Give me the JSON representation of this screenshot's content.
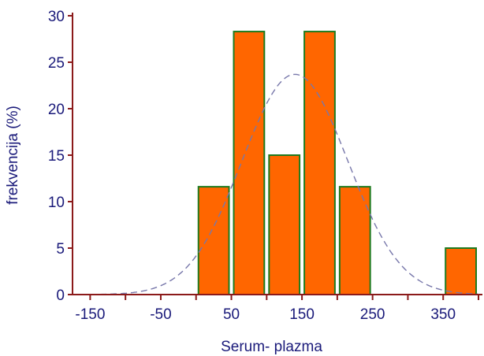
{
  "chart_data": {
    "type": "bar",
    "title": "",
    "xlabel": "Serum- plazma",
    "ylabel": "frekvencija (%)",
    "xlim": [
      -175,
      400
    ],
    "ylim": [
      0,
      30
    ],
    "x_ticks": [
      -150,
      -100,
      -50,
      0,
      50,
      100,
      150,
      200,
      250,
      300,
      350,
      400
    ],
    "x_tick_labels": [
      {
        "value": -150,
        "label": "-150"
      },
      {
        "value": -50,
        "label": "-50"
      },
      {
        "value": 50,
        "label": "50"
      },
      {
        "value": 150,
        "label": "150"
      },
      {
        "value": 250,
        "label": "250"
      },
      {
        "value": 350,
        "label": "350"
      }
    ],
    "y_ticks": [
      0,
      5,
      10,
      15,
      20,
      25,
      30
    ],
    "y_tick_labels": [
      "0",
      "5",
      "10",
      "15",
      "20",
      "25",
      "30"
    ],
    "bins": [
      {
        "from": 0,
        "to": 50,
        "value": 11.6
      },
      {
        "from": 50,
        "to": 100,
        "value": 28.3
      },
      {
        "from": 100,
        "to": 150,
        "value": 15.0
      },
      {
        "from": 150,
        "to": 200,
        "value": 28.3
      },
      {
        "from": 200,
        "to": 250,
        "value": 11.6
      },
      {
        "from": 350,
        "to": 400,
        "value": 5.0
      }
    ],
    "normal_curve": {
      "mean": 140,
      "sd": 75,
      "peak": 23.7
    },
    "colors": {
      "bar_fill": "#ff6600",
      "bar_stroke": "#1e7a1e",
      "axis": "#8b1a1a",
      "text": "#1a1a7a",
      "curve": "#7777aa"
    },
    "grid": false,
    "legend": "none"
  }
}
